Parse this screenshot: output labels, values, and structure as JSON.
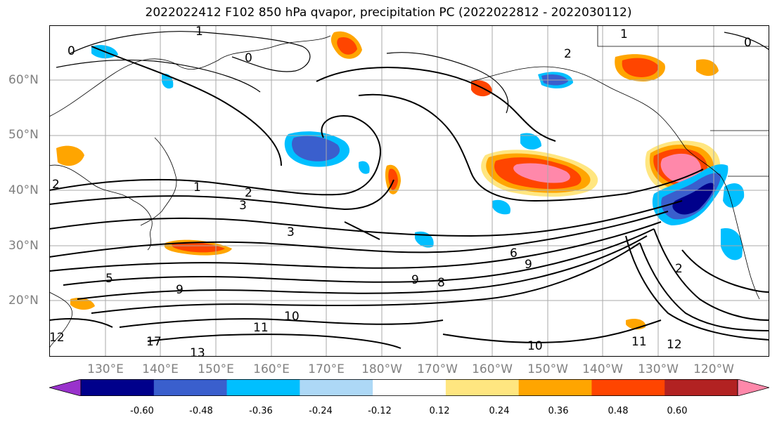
{
  "title": "2022022412 F102 850 hPa qvapor, precipitation PC (2022022812 - 2022030112)",
  "lat_labels": [
    "60°N",
    "50°N",
    "40°N",
    "30°N",
    "20°N"
  ],
  "lon_labels": [
    "130°E",
    "140°E",
    "150°E",
    "160°E",
    "170°E",
    "180°W",
    "170°W",
    "160°W",
    "150°W",
    "140°W",
    "130°W",
    "120°W"
  ],
  "colorbar": {
    "colors": [
      "#9932CC",
      "#00008B",
      "#3A5FCD",
      "#00BFFF",
      "#ADD8F6",
      "#FFFFFF",
      "#FFE680",
      "#FFA500",
      "#FF4500",
      "#B22222",
      "#FF88AA"
    ],
    "tick_labels": [
      "-0.60",
      "-0.48",
      "-0.36",
      "-0.24",
      "-0.12",
      "0.12",
      "0.24",
      "0.36",
      "0.48",
      "0.60"
    ]
  },
  "contour_labels": [
    "0",
    "0",
    "1",
    "2",
    "2",
    "3",
    "3",
    "1",
    "1",
    "2",
    "5",
    "6",
    "8",
    "9",
    "9",
    "9",
    "10",
    "10",
    "11",
    "11",
    "12",
    "12",
    "13",
    "17",
    "2",
    "0"
  ]
}
